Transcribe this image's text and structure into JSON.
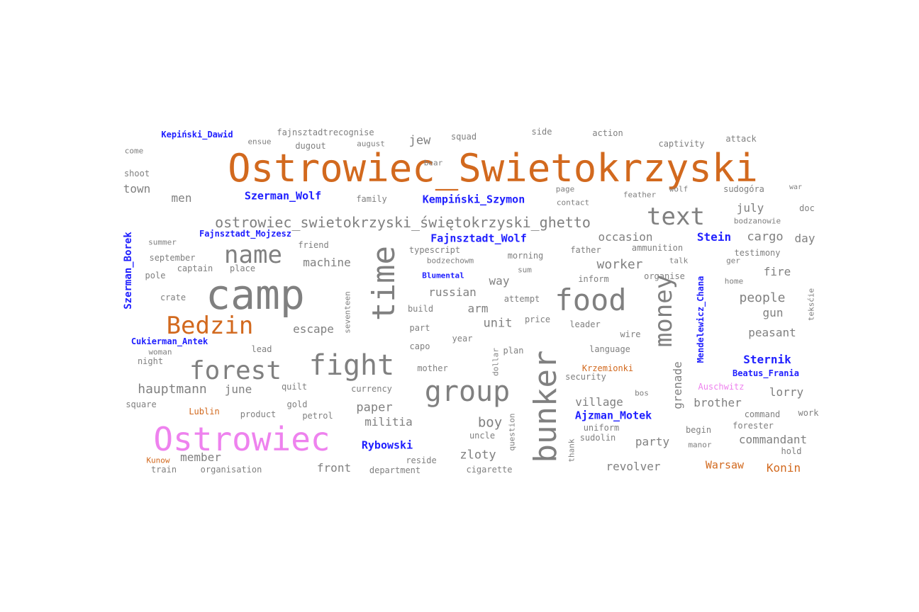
{
  "colors": {
    "place": "#d2691e",
    "person": "#1f1fff",
    "camp": "#ee82ee",
    "term": "#808080"
  },
  "words": [
    {
      "text": "Ostrowiec_Swietokrzyski",
      "cls": "place"
    },
    {
      "text": "camp",
      "cls": "term"
    },
    {
      "text": "Ostrowiec",
      "cls": "camp"
    },
    {
      "text": "time",
      "cls": "term"
    },
    {
      "text": "food",
      "cls": "term"
    },
    {
      "text": "bunker",
      "cls": "term"
    },
    {
      "text": "fight",
      "cls": "term"
    },
    {
      "text": "forest",
      "cls": "term"
    },
    {
      "text": "group",
      "cls": "term"
    },
    {
      "text": "name",
      "cls": "term"
    },
    {
      "text": "money",
      "cls": "term"
    },
    {
      "text": "Bedzin",
      "cls": "place"
    },
    {
      "text": "text",
      "cls": "term"
    },
    {
      "text": "ostrowiec_swietokrzyski_świętokrzyski_ghetto",
      "cls": "term"
    },
    {
      "text": "hauptmann",
      "cls": "term"
    },
    {
      "text": "Kepiński_Dawid",
      "cls": "person"
    },
    {
      "text": "fajnsztadtrecognise",
      "cls": "term"
    },
    {
      "text": "ensue",
      "cls": "term"
    },
    {
      "text": "august",
      "cls": "term"
    },
    {
      "text": "dugout",
      "cls": "term"
    },
    {
      "text": "jew",
      "cls": "term"
    },
    {
      "text": "squad",
      "cls": "term"
    },
    {
      "text": "side",
      "cls": "term"
    },
    {
      "text": "action",
      "cls": "term"
    },
    {
      "text": "captivity",
      "cls": "term"
    },
    {
      "text": "attack",
      "cls": "term"
    },
    {
      "text": "come",
      "cls": "term"
    },
    {
      "text": "shoot",
      "cls": "term"
    },
    {
      "text": "bear",
      "cls": "term"
    },
    {
      "text": "town",
      "cls": "term"
    },
    {
      "text": "men",
      "cls": "term"
    },
    {
      "text": "Szerman_Wolf",
      "cls": "person"
    },
    {
      "text": "family",
      "cls": "term"
    },
    {
      "text": "Kempiński_Szymon",
      "cls": "person"
    },
    {
      "text": "page",
      "cls": "term"
    },
    {
      "text": "contact",
      "cls": "term"
    },
    {
      "text": "feather",
      "cls": "term"
    },
    {
      "text": "wolf",
      "cls": "term"
    },
    {
      "text": "sudogóra",
      "cls": "term"
    },
    {
      "text": "war",
      "cls": "term"
    },
    {
      "text": "july",
      "cls": "term"
    },
    {
      "text": "doc",
      "cls": "term"
    },
    {
      "text": "bodzanowie",
      "cls": "term"
    },
    {
      "text": "Fajnsztadt_Mojzesz",
      "cls": "person"
    },
    {
      "text": "summer",
      "cls": "term"
    },
    {
      "text": "friend",
      "cls": "term"
    },
    {
      "text": "Fajnsztadt_Wolf",
      "cls": "person"
    },
    {
      "text": "occasion",
      "cls": "term"
    },
    {
      "text": "Stein",
      "cls": "person"
    },
    {
      "text": "cargo",
      "cls": "term"
    },
    {
      "text": "day",
      "cls": "term"
    },
    {
      "text": "typescript",
      "cls": "term"
    },
    {
      "text": "father",
      "cls": "term"
    },
    {
      "text": "ammunition",
      "cls": "term"
    },
    {
      "text": "testimony",
      "cls": "term"
    },
    {
      "text": "september",
      "cls": "term"
    },
    {
      "text": "machine",
      "cls": "term"
    },
    {
      "text": "bodzechowm",
      "cls": "term"
    },
    {
      "text": "morning",
      "cls": "term"
    },
    {
      "text": "worker",
      "cls": "term"
    },
    {
      "text": "talk",
      "cls": "term"
    },
    {
      "text": "ger",
      "cls": "term"
    },
    {
      "text": "captain",
      "cls": "term"
    },
    {
      "text": "place",
      "cls": "term"
    },
    {
      "text": "pole",
      "cls": "term"
    },
    {
      "text": "Blumental",
      "cls": "person"
    },
    {
      "text": "sum",
      "cls": "term"
    },
    {
      "text": "inform",
      "cls": "term"
    },
    {
      "text": "organise",
      "cls": "term"
    },
    {
      "text": "fire",
      "cls": "term"
    },
    {
      "text": "home",
      "cls": "term"
    },
    {
      "text": "way",
      "cls": "term"
    },
    {
      "text": "crate",
      "cls": "term"
    },
    {
      "text": "russian",
      "cls": "term"
    },
    {
      "text": "attempt",
      "cls": "term"
    },
    {
      "text": "people",
      "cls": "term"
    },
    {
      "text": "Szerman_Borek",
      "cls": "person"
    },
    {
      "text": "seventeen",
      "cls": "term"
    },
    {
      "text": "build",
      "cls": "term"
    },
    {
      "text": "arm",
      "cls": "term"
    },
    {
      "text": "gun",
      "cls": "term"
    },
    {
      "text": "price",
      "cls": "term"
    },
    {
      "text": "leader",
      "cls": "term"
    },
    {
      "text": "unit",
      "cls": "term"
    },
    {
      "text": "Mendelewicz_Chana",
      "cls": "person"
    },
    {
      "text": "teksćie",
      "cls": "term"
    },
    {
      "text": "escape",
      "cls": "term"
    },
    {
      "text": "part",
      "cls": "term"
    },
    {
      "text": "wire",
      "cls": "term"
    },
    {
      "text": "peasant",
      "cls": "term"
    },
    {
      "text": "Cukierman_Antek",
      "cls": "person"
    },
    {
      "text": "year",
      "cls": "term"
    },
    {
      "text": "lead",
      "cls": "term"
    },
    {
      "text": "capo",
      "cls": "term"
    },
    {
      "text": "language",
      "cls": "term"
    },
    {
      "text": "woman",
      "cls": "term"
    },
    {
      "text": "plan",
      "cls": "term"
    },
    {
      "text": "Sternik",
      "cls": "person"
    },
    {
      "text": "night",
      "cls": "term"
    },
    {
      "text": "mother",
      "cls": "term"
    },
    {
      "text": "dollar",
      "cls": "term"
    },
    {
      "text": "Krzemionki",
      "cls": "place"
    },
    {
      "text": "Beatus_Frania",
      "cls": "person"
    },
    {
      "text": "security",
      "cls": "term"
    },
    {
      "text": "quilt",
      "cls": "term"
    },
    {
      "text": "currency",
      "cls": "term"
    },
    {
      "text": "Auschwitz",
      "cls": "camp"
    },
    {
      "text": "june",
      "cls": "term"
    },
    {
      "text": "grenade",
      "cls": "term"
    },
    {
      "text": "lorry",
      "cls": "term"
    },
    {
      "text": "bos",
      "cls": "term"
    },
    {
      "text": "village",
      "cls": "term"
    },
    {
      "text": "square",
      "cls": "term"
    },
    {
      "text": "gold",
      "cls": "term"
    },
    {
      "text": "paper",
      "cls": "term"
    },
    {
      "text": "brother",
      "cls": "term"
    },
    {
      "text": "Lublin",
      "cls": "place"
    },
    {
      "text": "product",
      "cls": "term"
    },
    {
      "text": "petrol",
      "cls": "term"
    },
    {
      "text": "militia",
      "cls": "term"
    },
    {
      "text": "Ajzman_Motek",
      "cls": "person"
    },
    {
      "text": "command",
      "cls": "term"
    },
    {
      "text": "work",
      "cls": "term"
    },
    {
      "text": "boy",
      "cls": "term"
    },
    {
      "text": "uniform",
      "cls": "term"
    },
    {
      "text": "forester",
      "cls": "term"
    },
    {
      "text": "question",
      "cls": "term"
    },
    {
      "text": "begin",
      "cls": "term"
    },
    {
      "text": "uncle",
      "cls": "term"
    },
    {
      "text": "sudolin",
      "cls": "term"
    },
    {
      "text": "party",
      "cls": "term"
    },
    {
      "text": "commandant",
      "cls": "term"
    },
    {
      "text": "Rybowski",
      "cls": "person"
    },
    {
      "text": "thank",
      "cls": "term"
    },
    {
      "text": "manor",
      "cls": "term"
    },
    {
      "text": "hold",
      "cls": "term"
    },
    {
      "text": "zloty",
      "cls": "term"
    },
    {
      "text": "member",
      "cls": "term"
    },
    {
      "text": "Kunow",
      "cls": "place"
    },
    {
      "text": "reside",
      "cls": "term"
    },
    {
      "text": "revolver",
      "cls": "term"
    },
    {
      "text": "Warsaw",
      "cls": "place"
    },
    {
      "text": "Konin",
      "cls": "place"
    },
    {
      "text": "front",
      "cls": "term"
    },
    {
      "text": "train",
      "cls": "term"
    },
    {
      "text": "organisation",
      "cls": "term"
    },
    {
      "text": "department",
      "cls": "term"
    },
    {
      "text": "cigarette",
      "cls": "term"
    }
  ]
}
